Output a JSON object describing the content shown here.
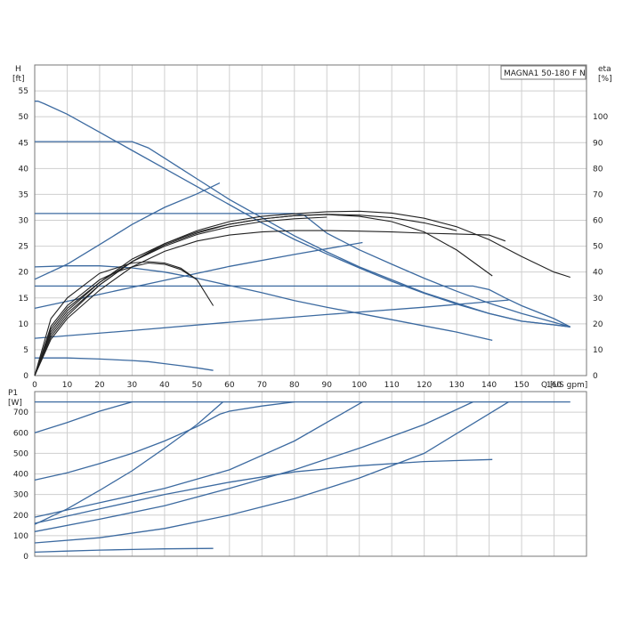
{
  "chart_data": [
    {
      "type": "line",
      "title": "MAGNA1 50-180 F N",
      "xlabel": "Q [US gpm]",
      "ylabel_unit": "H",
      "ylabel_unit2": "[ft]",
      "ylabel_right_unit": "eta",
      "ylabel_right_unit2": "[%]",
      "xlim": [
        0,
        170
      ],
      "ylim": [
        0,
        60
      ],
      "ylim_right": [
        0,
        120
      ],
      "xticks": [
        0,
        10,
        20,
        30,
        40,
        50,
        60,
        70,
        80,
        90,
        100,
        110,
        120,
        130,
        140,
        150,
        160
      ],
      "yticks": [
        0,
        5,
        10,
        15,
        20,
        25,
        30,
        35,
        40,
        45,
        50,
        55
      ],
      "yticks_right": [
        0,
        10,
        20,
        30,
        40,
        50,
        60,
        70,
        80,
        90,
        100
      ],
      "grid": true,
      "series": [
        {
          "kind": "head",
          "x": [
            0,
            1,
            3,
            10,
            20,
            30,
            40,
            50,
            60,
            70,
            80,
            90,
            100,
            110,
            120,
            130,
            140,
            150,
            160,
            165
          ],
          "y": [
            53,
            53,
            52.5,
            50.5,
            47,
            43.5,
            40,
            36.5,
            33,
            29.5,
            26.3,
            23.5,
            20.8,
            18.2,
            15.9,
            13.8,
            12,
            10.5,
            9.8,
            9.4
          ]
        },
        {
          "kind": "head",
          "x": [
            0,
            10,
            20,
            30,
            35,
            40,
            45,
            50,
            60,
            70,
            80,
            90,
            100,
            110,
            120,
            130,
            140,
            150,
            160,
            165
          ],
          "y": [
            45.2,
            45.2,
            45.2,
            45.2,
            44,
            42,
            40,
            38,
            34,
            30.5,
            27,
            23.9,
            21,
            18.5,
            16,
            14,
            12,
            10.5,
            9.8,
            9.4
          ]
        },
        {
          "kind": "head",
          "x": [
            0,
            10,
            20,
            40,
            60,
            80,
            83,
            90,
            100,
            110,
            120,
            130,
            140,
            150,
            160,
            165
          ],
          "y": [
            31.3,
            31.3,
            31.3,
            31.3,
            31.3,
            31.3,
            31,
            27.5,
            24.3,
            21.5,
            18.8,
            16.3,
            14,
            12,
            10.3,
            9.4
          ]
        },
        {
          "kind": "head",
          "x": [
            0,
            10,
            20,
            30,
            40,
            50,
            60,
            70,
            80,
            90,
            100,
            110,
            120,
            130,
            135,
            140,
            145,
            150,
            160,
            165
          ],
          "y": [
            17.3,
            17.3,
            17.3,
            17.3,
            17.3,
            17.3,
            17.3,
            17.3,
            17.3,
            17.3,
            17.3,
            17.3,
            17.3,
            17.3,
            17.3,
            16.6,
            15,
            13.5,
            11,
            9.4
          ]
        },
        {
          "kind": "head",
          "x": [
            0,
            10,
            20,
            30,
            40,
            50,
            60,
            70,
            80,
            90,
            100,
            110,
            120,
            130,
            141
          ],
          "y": [
            21,
            21.2,
            21.2,
            20.8,
            20,
            18.8,
            17.4,
            16,
            14.5,
            13.2,
            12,
            10.8,
            9.6,
            8.4,
            6.8
          ]
        },
        {
          "kind": "head",
          "x": [
            0,
            10,
            20,
            30,
            35,
            40,
            45,
            50,
            55
          ],
          "y": [
            3.4,
            3.4,
            3.2,
            2.9,
            2.7,
            2.3,
            1.9,
            1.5,
            1.0
          ]
        },
        {
          "kind": "system",
          "x": [
            0,
            10,
            20,
            30,
            40,
            50,
            57
          ],
          "y": [
            18.6,
            21.5,
            25.3,
            29.2,
            32.5,
            35.1,
            37.2
          ]
        },
        {
          "kind": "system",
          "x": [
            0,
            20,
            40,
            60,
            80,
            101
          ],
          "y": [
            13,
            15.7,
            18.4,
            21.1,
            23.4,
            25.7
          ]
        },
        {
          "kind": "system",
          "x": [
            0,
            30,
            60,
            90,
            120,
            146
          ],
          "y": [
            7.2,
            8.7,
            10.3,
            11.8,
            13.2,
            14.6
          ]
        },
        {
          "kind": "eta",
          "x": [
            0,
            5,
            10,
            20,
            30,
            40,
            50,
            60,
            70,
            80,
            90,
            100,
            110,
            120,
            130,
            140,
            150,
            160,
            165
          ],
          "y": [
            0,
            15,
            23,
            35,
            44,
            51,
            56,
            59.5,
            61.5,
            62.5,
            63.3,
            63.5,
            62.8,
            60.8,
            57.5,
            52.5,
            46,
            40,
            38
          ]
        },
        {
          "kind": "eta",
          "x": [
            0,
            5,
            10,
            20,
            30,
            40,
            50,
            60,
            70,
            80,
            90,
            100,
            110,
            120,
            130,
            141
          ],
          "y": [
            0,
            17,
            25,
            36,
            45,
            51,
            55.5,
            58.5,
            60.5,
            61.8,
            62.2,
            61.5,
            59.5,
            55.5,
            48.5,
            38.5
          ]
        },
        {
          "kind": "eta",
          "x": [
            0,
            5,
            10,
            20,
            30,
            40,
            50,
            60,
            70,
            80,
            90,
            100,
            110,
            120,
            130,
            140,
            145
          ],
          "y": [
            0,
            14,
            22,
            33,
            42,
            48,
            52,
            54.3,
            55.5,
            56,
            56,
            55.8,
            55.5,
            55,
            54.7,
            54.3,
            52
          ]
        },
        {
          "kind": "eta",
          "x": [
            0,
            5,
            10,
            20,
            30,
            40,
            50,
            60,
            70,
            80,
            90,
            100,
            110,
            120,
            130
          ],
          "y": [
            0,
            16,
            24,
            35,
            44,
            50.5,
            55,
            58.5,
            60.5,
            61.8,
            62.3,
            62,
            61,
            59,
            56
          ]
        },
        {
          "kind": "eta",
          "x": [
            0,
            5,
            10,
            20,
            30,
            35,
            40,
            45,
            50,
            55
          ],
          "y": [
            0,
            22,
            30,
            39.5,
            43.5,
            44,
            43.5,
            41.5,
            37,
            27
          ]
        },
        {
          "kind": "eta",
          "x": [
            0,
            5,
            10,
            20,
            25,
            30,
            35,
            40,
            45,
            50
          ],
          "y": [
            0,
            19,
            27,
            37,
            40,
            42,
            43.5,
            43,
            41,
            37
          ]
        },
        {
          "kind": "eta",
          "x": [
            0,
            5,
            10,
            20,
            30,
            40,
            50,
            60,
            70,
            80,
            90
          ],
          "y": [
            0,
            18,
            26,
            36,
            44,
            50,
            54.5,
            57.5,
            59.5,
            60.6,
            61.2
          ]
        }
      ]
    },
    {
      "type": "line",
      "xlabel": "",
      "ylabel_unit": "P1",
      "ylabel_unit2": "[W]",
      "xlim": [
        0,
        170
      ],
      "ylim": [
        0,
        800
      ],
      "yticks": [
        0,
        100,
        200,
        300,
        400,
        500,
        600,
        700
      ],
      "grid": true,
      "series": [
        {
          "x": [
            0,
            3,
            10,
            20,
            30,
            40,
            50,
            60,
            70,
            80,
            90,
            100,
            110,
            120,
            130,
            140,
            150,
            160,
            165
          ],
          "y": [
            750,
            750,
            750,
            750,
            750,
            750,
            750,
            750,
            750,
            750,
            750,
            750,
            750,
            750,
            750,
            750,
            750,
            750,
            750
          ]
        },
        {
          "x": [
            0,
            10,
            20,
            30
          ],
          "y": [
            600,
            650,
            705,
            750
          ]
        },
        {
          "x": [
            0,
            10,
            20,
            30,
            40,
            50,
            57,
            60,
            70,
            80
          ],
          "y": [
            370,
            405,
            450,
            500,
            560,
            630,
            690,
            705,
            730,
            750
          ]
        },
        {
          "x": [
            0,
            10,
            20,
            30,
            40,
            50,
            58
          ],
          "y": [
            155,
            230,
            320,
            415,
            525,
            640,
            750
          ]
        },
        {
          "x": [
            0,
            20,
            40,
            60,
            80,
            101
          ],
          "y": [
            190,
            260,
            330,
            420,
            560,
            750
          ]
        },
        {
          "x": [
            0,
            20,
            40,
            60,
            80,
            100,
            120,
            141
          ],
          "y": [
            160,
            230,
            300,
            360,
            410,
            440,
            460,
            470
          ]
        },
        {
          "x": [
            0,
            20,
            40,
            60,
            80,
            101,
            120,
            135
          ],
          "y": [
            120,
            180,
            245,
            330,
            420,
            530,
            640,
            750
          ]
        },
        {
          "x": [
            0,
            20,
            40,
            60,
            80,
            100,
            120,
            146
          ],
          "y": [
            65,
            90,
            135,
            200,
            280,
            380,
            500,
            750
          ]
        },
        {
          "x": [
            0,
            10,
            20,
            30,
            40,
            55
          ],
          "y": [
            20,
            25,
            30,
            33,
            36,
            38
          ]
        }
      ]
    }
  ]
}
